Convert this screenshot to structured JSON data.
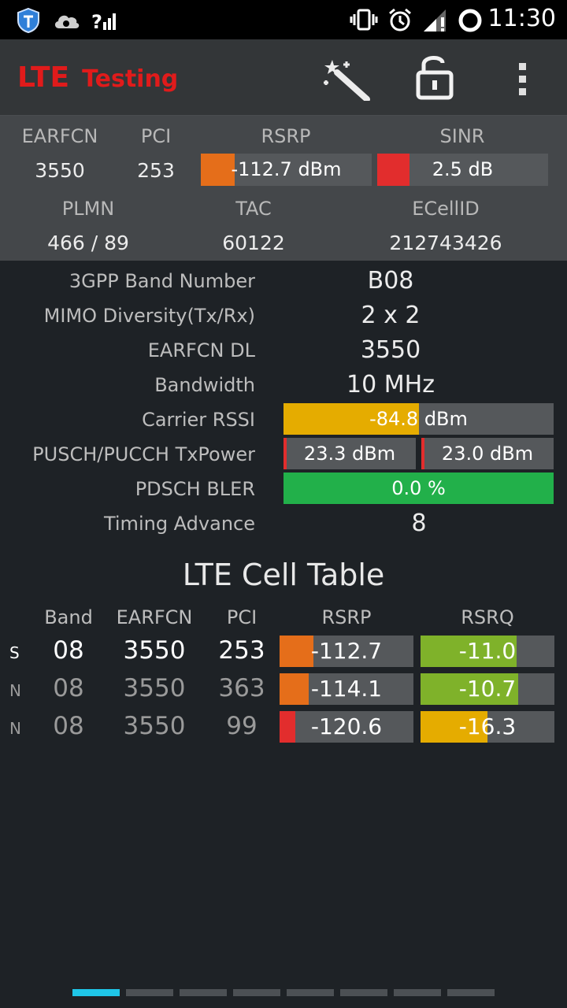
{
  "status_bar": {
    "time": "11:30",
    "left_icons": [
      "shield-icon",
      "cloud-sync-icon",
      "signal-unknown-icon"
    ],
    "right_icons": [
      "vibrate-icon",
      "alarm-icon",
      "signal-icon",
      "sync-ring-icon"
    ]
  },
  "action_bar": {
    "title_primary": "LTE",
    "title_secondary": "Testing",
    "actions": [
      "magic-wand-icon",
      "unlock-icon",
      "overflow-menu-icon"
    ]
  },
  "summary": {
    "earfcn_label": "EARFCN",
    "earfcn_value": "3550",
    "pci_label": "PCI",
    "pci_value": "253",
    "rsrp_label": "RSRP",
    "rsrp_value": "-112.7 dBm",
    "rsrp_level": 0.2,
    "rsrp_color": "#e56e1a",
    "sinr_label": "SINR",
    "sinr_value": "2.5 dB",
    "sinr_level": 0.19,
    "sinr_color": "#e22d2d",
    "plmn_label": "PLMN",
    "plmn_value": "466 / 89",
    "tac_label": "TAC",
    "tac_value": "60122",
    "ecellid_label": "ECellID",
    "ecellid_value": "212743426"
  },
  "details": {
    "band_label": "3GPP Band Number",
    "band_value": "B08",
    "mimo_label": "MIMO Diversity(Tx/Rx)",
    "mimo_value": "2 x 2",
    "earfcn_dl_label": "EARFCN DL",
    "earfcn_dl_value": "3550",
    "bandwidth_label": "Bandwidth",
    "bandwidth_value": "10 MHz",
    "rssi_label": "Carrier RSSI",
    "rssi_value": "-84.8 dBm",
    "rssi_level": 0.5,
    "rssi_color": "#e5ac00",
    "txpower_label": "PUSCH/PUCCH TxPower",
    "pusch_value": "23.3 dBm",
    "pucch_value": "23.0 dBm",
    "tx_color": "#e22d2d",
    "bler_label": "PDSCH BLER",
    "bler_value": "0.0 %",
    "bler_color": "#22b04a",
    "ta_label": "Timing Advance",
    "ta_value": "8"
  },
  "cell_table": {
    "title": "LTE Cell Table",
    "headers": {
      "band": "Band",
      "earfcn": "EARFCN",
      "pci": "PCI",
      "rsrp": "RSRP",
      "rsrq": "RSRQ"
    },
    "rows": [
      {
        "type": "S",
        "band": "08",
        "earfcn": "3550",
        "pci": "253",
        "rsrp": "-112.7",
        "rsrp_level": 0.25,
        "rsrp_color": "#e56e1a",
        "rsrq": "-11.0",
        "rsrq_level": 0.72,
        "rsrq_color": "#7fb22a"
      },
      {
        "type": "N",
        "band": "08",
        "earfcn": "3550",
        "pci": "363",
        "rsrp": "-114.1",
        "rsrp_level": 0.22,
        "rsrp_color": "#e56e1a",
        "rsrq": "-10.7",
        "rsrq_level": 0.73,
        "rsrq_color": "#7fb22a"
      },
      {
        "type": "N",
        "band": "08",
        "earfcn": "3550",
        "pci": "99",
        "rsrp": "-120.6",
        "rsrp_level": 0.12,
        "rsrp_color": "#e22d2d",
        "rsrq": "-16.3",
        "rsrq_level": 0.5,
        "rsrq_color": "#e5ac00"
      }
    ]
  },
  "pager": {
    "pages": 8,
    "active": 0
  }
}
